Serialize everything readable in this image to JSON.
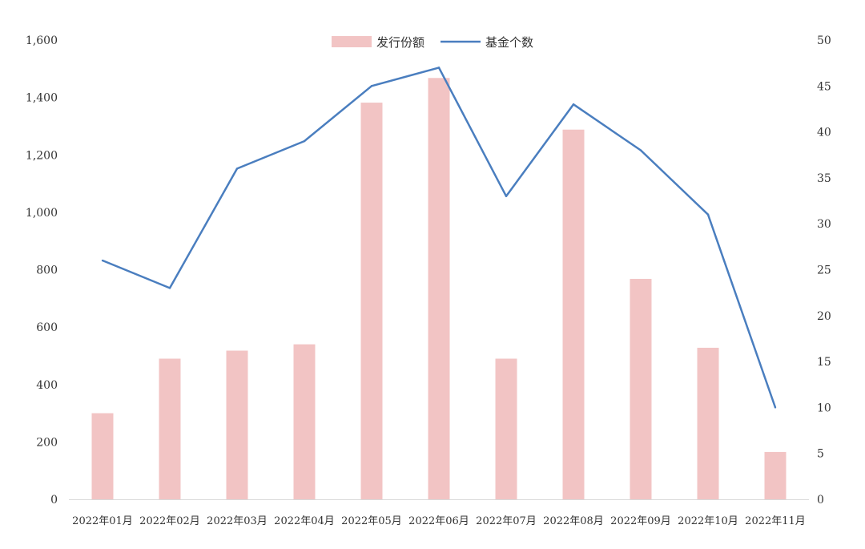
{
  "chart_data": {
    "type": "bar+line",
    "categories": [
      "2022年01月",
      "2022年02月",
      "2022年03月",
      "2022年04月",
      "2022年05月",
      "2022年06月",
      "2022年07月",
      "2022年08月",
      "2022年09月",
      "2022年10月",
      "2022年11月"
    ],
    "series": [
      {
        "name": "发行份额",
        "type": "bar",
        "axis": "left",
        "color": "#f2c4c4",
        "values": [
          300,
          490,
          518,
          540,
          1382,
          1468,
          490,
          1288,
          768,
          528,
          165
        ]
      },
      {
        "name": "基金个数",
        "type": "line",
        "axis": "right",
        "color": "#4a7ebf",
        "values": [
          26,
          23,
          36,
          39,
          45,
          47,
          33,
          43,
          38,
          31,
          10
        ]
      }
    ],
    "y_left": {
      "min": 0,
      "max": 1600,
      "ticks": [
        "0",
        "200",
        "400",
        "600",
        "800",
        "1,000",
        "1,200",
        "1,400",
        "1,600"
      ]
    },
    "y_right": {
      "min": 0,
      "max": 50,
      "ticks": [
        "0",
        "5",
        "10",
        "15",
        "20",
        "25",
        "30",
        "35",
        "40",
        "45",
        "50"
      ]
    },
    "legend_position": "top-center",
    "grid": false
  }
}
